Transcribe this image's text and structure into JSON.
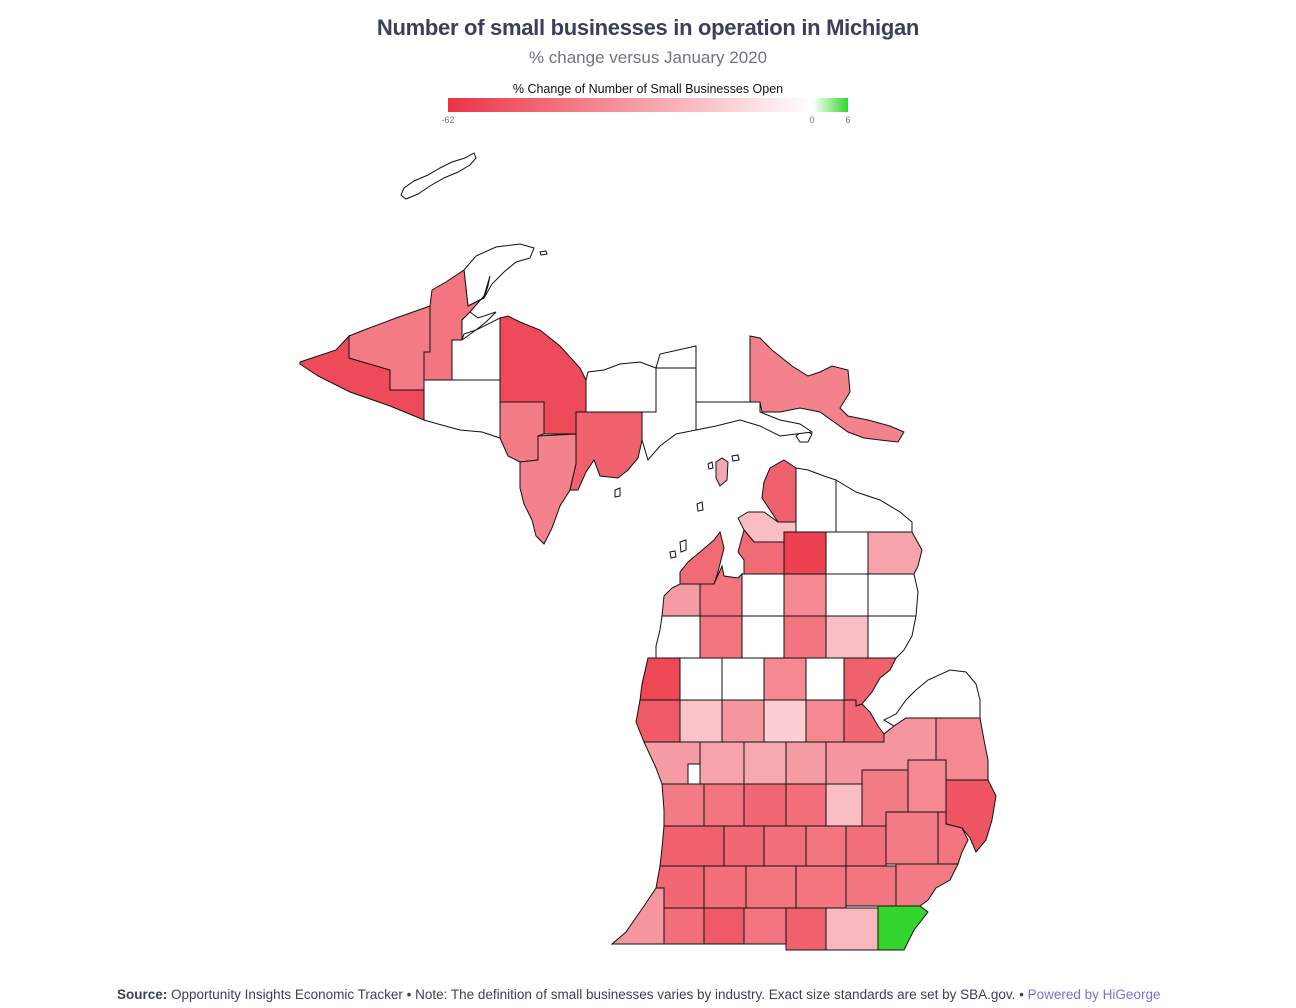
{
  "title": "Number of small businesses in operation in Michigan",
  "subtitle": "% change versus January 2020",
  "legend": {
    "title": "% Change of Number of Small Businesses Open",
    "min_label": "-62",
    "zero_label": "0",
    "max_label": "6",
    "min": -62,
    "max": 6,
    "neg_color": "#ec3344",
    "zero_color": "#ffffff",
    "pos_color": "#33d62d"
  },
  "footer": {
    "source_label": "Source:",
    "source_text": "Opportunity Insights Economic Tracker • Note: The definition of small businesses varies by industry. Exact size standards are set by SBA.gov. •",
    "powered": "Powered by HiGeorge"
  },
  "chart_data": {
    "type": "choropleth",
    "title": "Number of small businesses in operation in Michigan",
    "subtitle": "% change versus January 2020",
    "colorbar_title": "% Change of Number of Small Businesses Open",
    "colorbar_range": [
      -62,
      6
    ],
    "regions": [
      {
        "id": "gogebic",
        "value": -55
      },
      {
        "id": "ontonagon",
        "value": -40
      },
      {
        "id": "houghton",
        "value": -42
      },
      {
        "id": "keweenaw",
        "value": 0
      },
      {
        "id": "baraga",
        "value": 0
      },
      {
        "id": "iron",
        "value": 0
      },
      {
        "id": "marquette",
        "value": -55
      },
      {
        "id": "dickinson",
        "value": -40
      },
      {
        "id": "menominee",
        "value": -38
      },
      {
        "id": "delta",
        "value": -48
      },
      {
        "id": "alger",
        "value": 0
      },
      {
        "id": "schoolcraft",
        "value": 0
      },
      {
        "id": "luce",
        "value": 0
      },
      {
        "id": "mackinac",
        "value": 0
      },
      {
        "id": "chippewa",
        "value": -38
      },
      {
        "id": "emmet",
        "value": -48
      },
      {
        "id": "cheboygan",
        "value": 0
      },
      {
        "id": "presque-isle",
        "value": 0
      },
      {
        "id": "charlevoix",
        "value": -20
      },
      {
        "id": "leelanau",
        "value": -45
      },
      {
        "id": "antrim",
        "value": -45
      },
      {
        "id": "otsego",
        "value": -58
      },
      {
        "id": "montmorency",
        "value": 0
      },
      {
        "id": "alpena",
        "value": -28
      },
      {
        "id": "benzie",
        "value": -30
      },
      {
        "id": "grand-traverse",
        "value": -42
      },
      {
        "id": "kalkaska",
        "value": 0
      },
      {
        "id": "crawford",
        "value": -36
      },
      {
        "id": "oscoda",
        "value": 0
      },
      {
        "id": "alcona",
        "value": 0
      },
      {
        "id": "manistee",
        "value": 0
      },
      {
        "id": "wexford",
        "value": -42
      },
      {
        "id": "missaukee",
        "value": 0
      },
      {
        "id": "roscommon",
        "value": -42
      },
      {
        "id": "ogemaw",
        "value": -20
      },
      {
        "id": "iosco",
        "value": 0
      },
      {
        "id": "mason",
        "value": -56
      },
      {
        "id": "lake",
        "value": 0
      },
      {
        "id": "osceola",
        "value": 0
      },
      {
        "id": "clare",
        "value": -36
      },
      {
        "id": "gladwin",
        "value": 0
      },
      {
        "id": "arenac",
        "value": -48
      },
      {
        "id": "oceana",
        "value": -50
      },
      {
        "id": "newaygo",
        "value": -18
      },
      {
        "id": "mecosta",
        "value": -32
      },
      {
        "id": "isabella",
        "value": -15
      },
      {
        "id": "midland",
        "value": -36
      },
      {
        "id": "bay",
        "value": -46
      },
      {
        "id": "huron",
        "value": 0
      },
      {
        "id": "muskegon",
        "value": -30
      },
      {
        "id": "montcalm",
        "value": -28
      },
      {
        "id": "gratiot",
        "value": -26
      },
      {
        "id": "saginaw",
        "value": -30
      },
      {
        "id": "tuscola",
        "value": -32
      },
      {
        "id": "sanilac",
        "value": -36
      },
      {
        "id": "ottawa",
        "value": -40
      },
      {
        "id": "kent",
        "value": -42
      },
      {
        "id": "ionia",
        "value": -46
      },
      {
        "id": "clinton",
        "value": -44
      },
      {
        "id": "shiawassee",
        "value": -20
      },
      {
        "id": "genesee",
        "value": -40
      },
      {
        "id": "lapeer",
        "value": -36
      },
      {
        "id": "st-clair",
        "value": -52
      },
      {
        "id": "allegan",
        "value": -48
      },
      {
        "id": "barry",
        "value": -46
      },
      {
        "id": "eaton",
        "value": -44
      },
      {
        "id": "ingham",
        "value": -42
      },
      {
        "id": "livingston",
        "value": -44
      },
      {
        "id": "oakland",
        "value": -40
      },
      {
        "id": "macomb",
        "value": -42
      },
      {
        "id": "van-buren",
        "value": -46
      },
      {
        "id": "kalamazoo",
        "value": -44
      },
      {
        "id": "calhoun",
        "value": -42
      },
      {
        "id": "jackson",
        "value": -42
      },
      {
        "id": "washtenaw",
        "value": -42
      },
      {
        "id": "wayne",
        "value": -40
      },
      {
        "id": "berrien",
        "value": -32
      },
      {
        "id": "cass",
        "value": -44
      },
      {
        "id": "st-joseph",
        "value": -50
      },
      {
        "id": "branch",
        "value": -42
      },
      {
        "id": "hillsdale",
        "value": -48
      },
      {
        "id": "lenawee",
        "value": -22
      },
      {
        "id": "monroe",
        "value": 6
      }
    ]
  }
}
